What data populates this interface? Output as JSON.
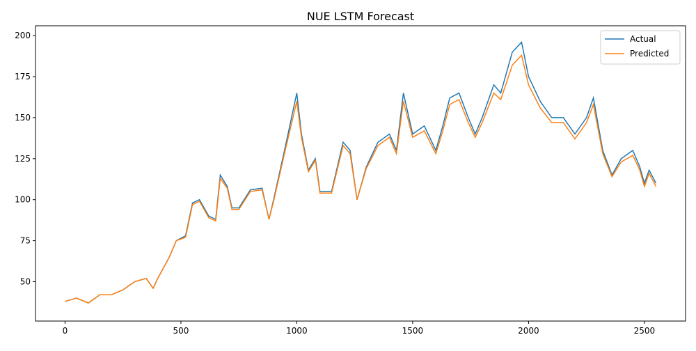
{
  "chart_data": {
    "type": "line",
    "title": "NUE LSTM Forecast",
    "x": [
      0,
      50,
      100,
      150,
      200,
      250,
      300,
      350,
      380,
      400,
      450,
      480,
      520,
      550,
      580,
      620,
      650,
      670,
      700,
      720,
      750,
      800,
      850,
      880,
      900,
      950,
      1000,
      1020,
      1050,
      1080,
      1100,
      1150,
      1200,
      1230,
      1260,
      1300,
      1350,
      1400,
      1430,
      1460,
      1500,
      1550,
      1600,
      1630,
      1660,
      1700,
      1740,
      1770,
      1800,
      1850,
      1880,
      1930,
      1970,
      2000,
      2050,
      2100,
      2150,
      2200,
      2250,
      2280,
      2320,
      2360,
      2400,
      2450,
      2480,
      2500,
      2520,
      2550
    ],
    "series": [
      {
        "name": "Actual",
        "color": "#1f77b4",
        "values": [
          38,
          40,
          37,
          42,
          42,
          45,
          50,
          52,
          46,
          52,
          65,
          75,
          78,
          98,
          100,
          90,
          88,
          115,
          108,
          95,
          95,
          106,
          107,
          88,
          100,
          132,
          165,
          140,
          118,
          125,
          105,
          105,
          135,
          130,
          100,
          120,
          135,
          140,
          130,
          165,
          140,
          145,
          130,
          145,
          162,
          165,
          150,
          140,
          150,
          170,
          165,
          190,
          196,
          175,
          160,
          150,
          150,
          140,
          150,
          162,
          130,
          115,
          125,
          130,
          120,
          110,
          118,
          110
        ]
      },
      {
        "name": "Predicted",
        "color": "#ff7f0e",
        "values": [
          38,
          40,
          37,
          42,
          42,
          45,
          50,
          52,
          46,
          52,
          65,
          75,
          77,
          97,
          99,
          89,
          87,
          113,
          107,
          94,
          94,
          105,
          106,
          88,
          99,
          130,
          160,
          138,
          117,
          124,
          104,
          104,
          133,
          128,
          100,
          119,
          133,
          138,
          128,
          160,
          138,
          142,
          128,
          142,
          158,
          161,
          147,
          138,
          147,
          165,
          161,
          182,
          188,
          170,
          156,
          147,
          147,
          137,
          147,
          158,
          128,
          114,
          123,
          127,
          118,
          108,
          116,
          108
        ]
      }
    ],
    "xlim": [
      -127.5,
      2677.5
    ],
    "ylim": [
      26,
      206
    ],
    "xticks": [
      0,
      500,
      1000,
      1500,
      2000,
      2500
    ],
    "yticks": [
      50,
      75,
      100,
      125,
      150,
      175,
      200
    ],
    "legend": "upper right"
  }
}
